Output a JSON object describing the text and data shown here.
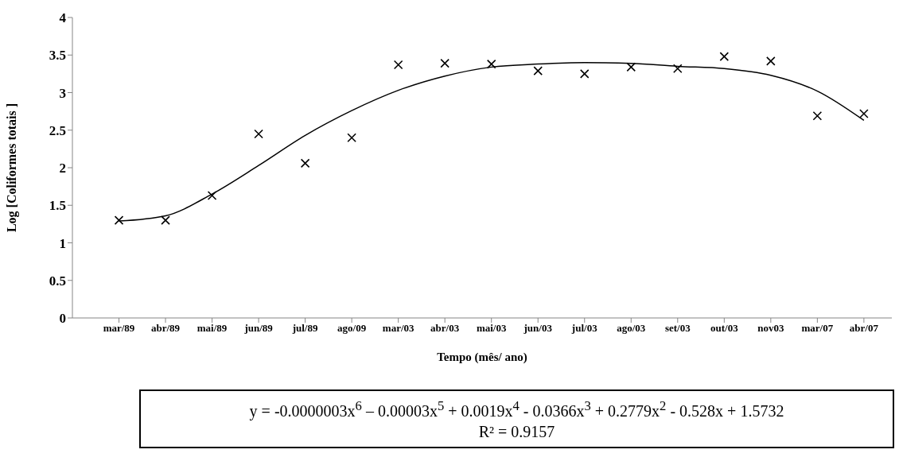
{
  "chart_data": {
    "type": "scatter",
    "xlabel": "Tempo (mês/ ano)",
    "ylabel": "Log  [Coliformes totais ]",
    "categories": [
      "mar/89",
      "abr/89",
      "mai/89",
      "jun/89",
      "jul/89",
      "ago/09",
      "mar/03",
      "abr/03",
      "mai/03",
      "jun/03",
      "jul/03",
      "ago/03",
      "set/03",
      "out/03",
      "nov03",
      "mar/07",
      "abr/07"
    ],
    "ylim": [
      0,
      4
    ],
    "yticks": [
      0,
      0.5,
      1,
      1.5,
      2,
      2.5,
      3,
      3.5,
      4
    ],
    "series": [
      {
        "marker": "cross",
        "color": "#000000",
        "values": [
          1.3,
          1.3,
          1.63,
          2.45,
          2.06,
          2.4,
          3.37,
          3.39,
          3.38,
          3.29,
          3.25,
          3.34,
          3.32,
          3.48,
          3.42,
          2.69,
          2.72
        ]
      },
      {
        "type": "line",
        "color": "#000000",
        "values": [
          1.29,
          1.36,
          1.65,
          2.03,
          2.43,
          2.76,
          3.03,
          3.22,
          3.34,
          3.38,
          3.4,
          3.39,
          3.35,
          3.32,
          3.23,
          3.02,
          2.63
        ]
      }
    ],
    "annotations": [
      "y = -0.0000003x$^{6}$ – 0.00003x$^{5}$ + 0.0019x$^{4}$ - 0.0366x$^{3}$ + 0.2779x$^{2}$ - 0.528x + 1.5732",
      "R² = 0.9157"
    ]
  }
}
